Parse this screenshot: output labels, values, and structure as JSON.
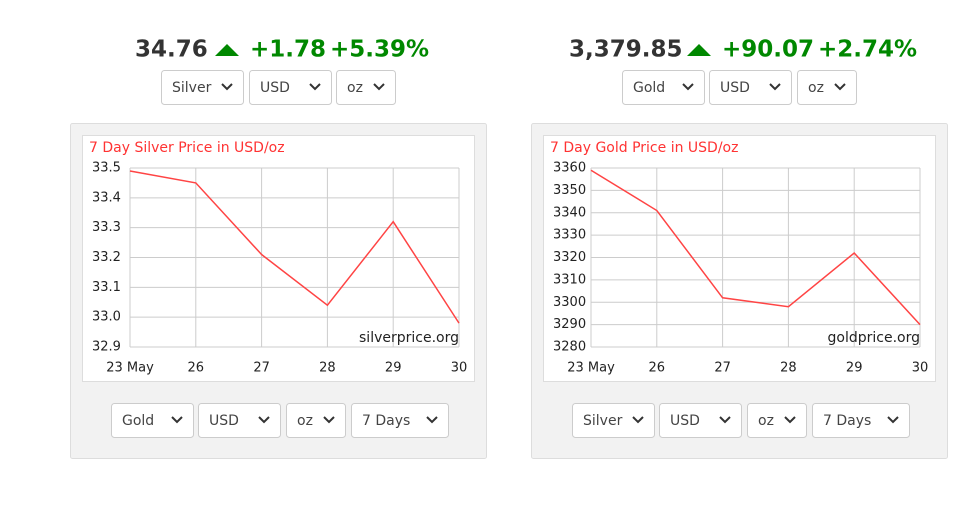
{
  "widgets": [
    {
      "price": "34.76",
      "change": "+1.78",
      "percent": "+5.39%",
      "selects": [
        "Silver",
        "USD",
        "oz"
      ],
      "bottom_selects": [
        "Gold",
        "USD",
        "oz",
        "7 Days"
      ]
    },
    {
      "price": "3,379.85",
      "change": "+90.07",
      "percent": "+2.74%",
      "selects": [
        "Gold",
        "USD",
        "oz"
      ],
      "bottom_selects": [
        "Silver",
        "USD",
        "oz",
        "7 Days"
      ]
    }
  ],
  "chart_data": [
    {
      "type": "line",
      "title": "7 Day Silver Price in USD/oz",
      "annotation": "silverprice.org",
      "categories": [
        "23 May",
        "26",
        "27",
        "28",
        "29",
        "30"
      ],
      "series": [
        {
          "color": "#ff4444",
          "values": [
            33.49,
            33.45,
            33.21,
            33.04,
            33.32,
            32.98
          ]
        }
      ],
      "ylim": [
        32.9,
        33.5
      ],
      "yticks": [
        33.5,
        33.4,
        33.3,
        33.2,
        33.1,
        {
          "value": 33,
          "label": "33.0"
        },
        32.9
      ],
      "grid": true
    },
    {
      "type": "line",
      "title": "7 Day Gold Price in USD/oz",
      "annotation": "goldprice.org",
      "categories": [
        "23 May",
        "26",
        "27",
        "28",
        "29",
        "30"
      ],
      "series": [
        {
          "color": "#ff4444",
          "values": [
            3359,
            3341,
            3302,
            3298,
            3322,
            3290
          ]
        }
      ],
      "ylim": [
        3280,
        3360
      ],
      "yticks": [
        3360,
        3350,
        3340,
        3330,
        3320,
        3310,
        3300,
        3290,
        3280
      ],
      "grid": true
    }
  ]
}
